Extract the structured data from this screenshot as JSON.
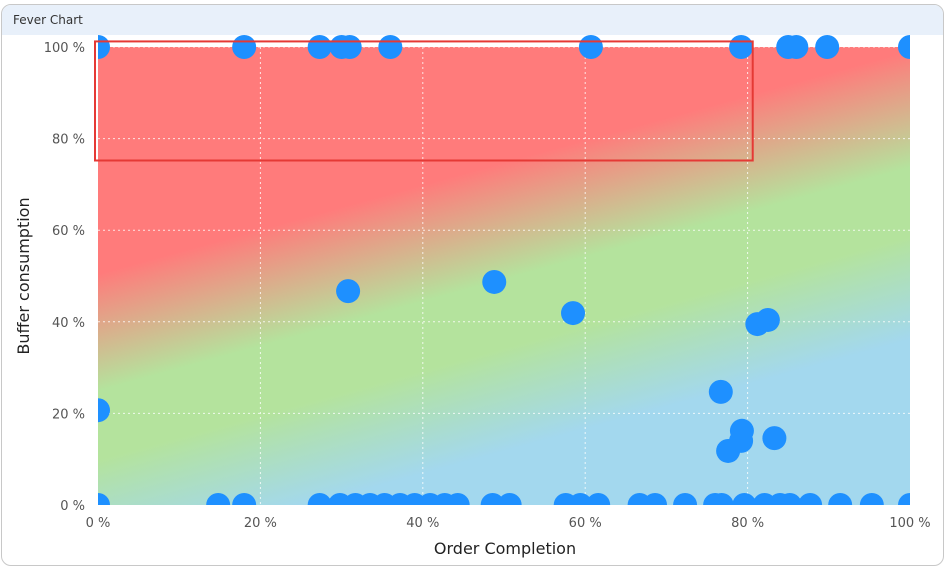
{
  "panel": {
    "title": "Fever Chart"
  },
  "chart_data": {
    "type": "scatter",
    "title": "Fever Chart",
    "xlabel": "Order Completion",
    "ylabel": "Buffer consumption",
    "xlim": [
      0,
      100
    ],
    "ylim": [
      0,
      100
    ],
    "xticks": [
      "0 %",
      "20 %",
      "40 %",
      "60 %",
      "80 %",
      "100 %"
    ],
    "yticks": [
      "0 %",
      "20 %",
      "40 %",
      "60 %",
      "80 %",
      "100 %"
    ],
    "grid": true,
    "zones": {
      "red": "#ff7b7b",
      "green": "#b4e39d",
      "blue": "#a3d8ee"
    },
    "point_color": "#1e90ff",
    "highlight_box": {
      "x": [
        0,
        81
      ],
      "y": [
        75,
        101
      ],
      "color": "#e53935"
    },
    "points": [
      [
        0,
        100
      ],
      [
        18,
        100
      ],
      [
        27.3,
        100
      ],
      [
        30,
        100
      ],
      [
        31,
        100
      ],
      [
        36,
        100
      ],
      [
        60.7,
        100
      ],
      [
        79.2,
        100
      ],
      [
        85,
        100
      ],
      [
        86,
        100
      ],
      [
        89.8,
        100
      ],
      [
        100,
        100
      ],
      [
        30.8,
        46.7
      ],
      [
        48.8,
        48.7
      ],
      [
        58.5,
        41.9
      ],
      [
        81.2,
        39.5
      ],
      [
        82.5,
        40.4
      ],
      [
        0,
        20.7
      ],
      [
        76.7,
        24.7
      ],
      [
        77.6,
        11.8
      ],
      [
        79.2,
        14
      ],
      [
        79.3,
        16.2
      ],
      [
        83.3,
        14.6
      ],
      [
        0,
        0
      ],
      [
        14.8,
        0
      ],
      [
        18,
        0
      ],
      [
        27.3,
        0
      ],
      [
        29.8,
        0
      ],
      [
        31.7,
        0
      ],
      [
        33.5,
        0
      ],
      [
        35.3,
        0
      ],
      [
        37.2,
        0
      ],
      [
        39,
        0
      ],
      [
        40.9,
        0
      ],
      [
        42.7,
        0
      ],
      [
        44.3,
        0
      ],
      [
        48.6,
        0
      ],
      [
        50.7,
        0
      ],
      [
        57.6,
        0
      ],
      [
        59.4,
        0
      ],
      [
        61.6,
        0
      ],
      [
        66.7,
        0
      ],
      [
        68.6,
        0
      ],
      [
        72.3,
        0
      ],
      [
        76,
        0
      ],
      [
        76.8,
        0
      ],
      [
        79.6,
        0
      ],
      [
        82.1,
        0
      ],
      [
        84,
        0
      ],
      [
        85.2,
        0
      ],
      [
        87.7,
        0
      ],
      [
        91.4,
        0
      ],
      [
        95.3,
        0
      ],
      [
        100,
        0
      ]
    ]
  }
}
